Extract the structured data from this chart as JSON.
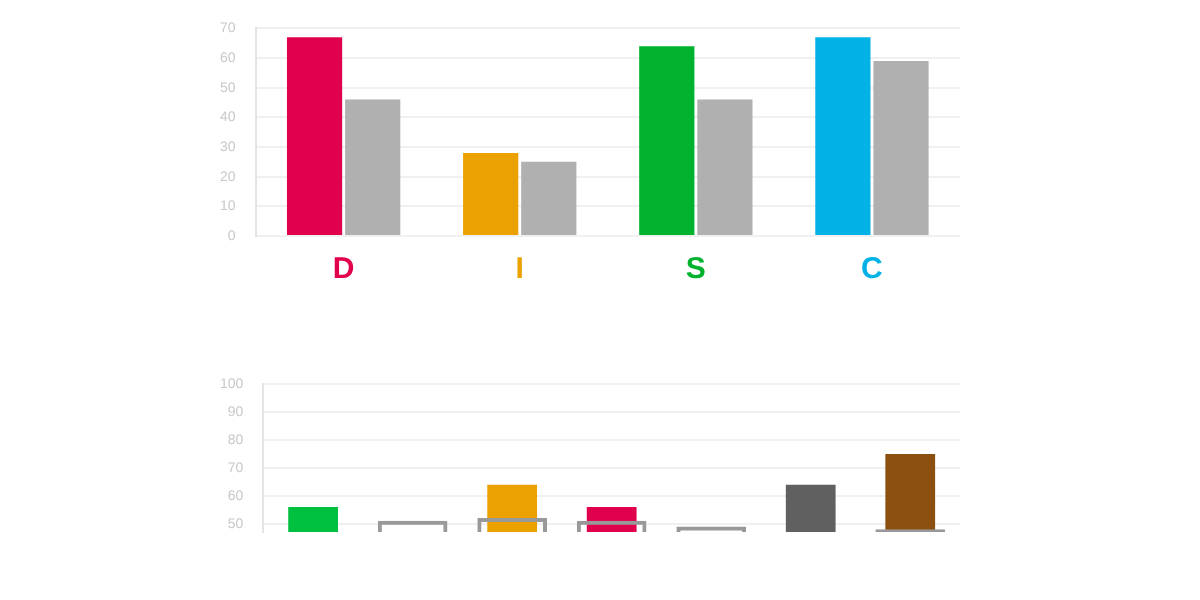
{
  "chart_data": [
    {
      "type": "bar",
      "categories": [
        "D",
        "I",
        "S",
        "C"
      ],
      "series": [
        {
          "colors": [
            "#e0004d",
            "#eba100",
            "#00b22d",
            "#00b2e5"
          ],
          "values": [
            67,
            28,
            64,
            67
          ]
        },
        {
          "colors": [
            "#b0b0b0",
            "#b0b0b0",
            "#b0b0b0",
            "#b0b0b0"
          ],
          "values": [
            46,
            25,
            46,
            59
          ]
        }
      ],
      "ylim": [
        0,
        70
      ],
      "yticks": [
        0,
        10,
        20,
        30,
        40,
        50,
        60,
        70
      ],
      "grid": "y"
    },
    {
      "type": "bar",
      "categories": [
        null,
        null,
        null,
        null,
        null,
        null,
        null
      ],
      "series": [
        {
          "colors": [
            "#00c040",
            null,
            "#eba100",
            "#e0004d",
            null,
            "#606060",
            "#8b5010"
          ],
          "values": [
            56,
            null,
            64,
            56,
            null,
            64,
            75
          ]
        },
        {
          "color": "#999999",
          "values": [
            null,
            51,
            52,
            51,
            49,
            null,
            48
          ]
        }
      ],
      "ylim": [
        47,
        100
      ],
      "yticks": [
        50,
        60,
        70,
        80,
        90,
        100
      ],
      "grid": "y"
    }
  ]
}
